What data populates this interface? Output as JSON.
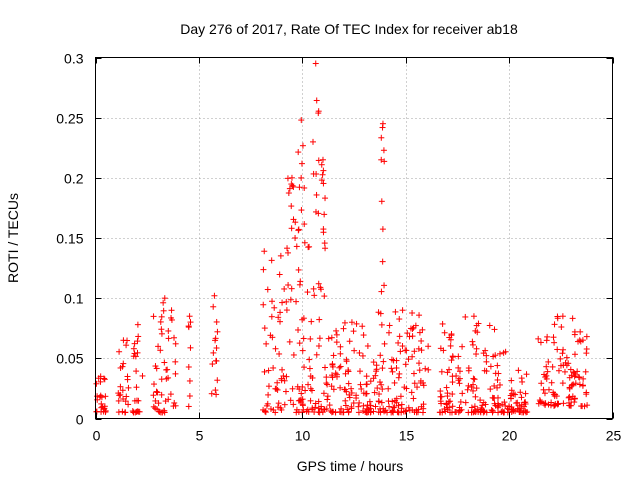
{
  "chart_data": {
    "type": "scatter",
    "title": "Day 276 of 2017, Rate Of TEC Index for receiver ab18",
    "xlabel": "GPS time / hours",
    "ylabel": "ROTI / TECUs",
    "xlim": [
      0,
      25
    ],
    "ylim": [
      0,
      0.3
    ],
    "xticks": [
      0,
      5,
      10,
      15,
      20,
      25
    ],
    "yticks": [
      0,
      0.05,
      0.1,
      0.15,
      0.2,
      0.25,
      0.3
    ],
    "xtick_labels": [
      "0",
      "5",
      "10",
      "15",
      "20",
      "25"
    ],
    "ytick_labels": [
      "0",
      "0.05",
      "0.1",
      "0.15",
      "0.2",
      "0.25",
      "0.3"
    ],
    "grid": true,
    "legend": "none",
    "marker": "+",
    "color": "#ff0000",
    "clusters": [
      {
        "x": [
          0.0,
          0.5
        ],
        "y": [
          0.005,
          0.035
        ]
      },
      {
        "x": [
          1.1,
          1.6
        ],
        "y": [
          0.005,
          0.065
        ]
      },
      {
        "x": [
          1.8,
          2.3
        ],
        "y": [
          0.005,
          0.078
        ]
      },
      {
        "x": [
          2.8,
          3.9
        ],
        "y": [
          0.005,
          0.1
        ]
      },
      {
        "x": [
          4.5,
          4.6
        ],
        "y": [
          0.01,
          0.085
        ]
      },
      {
        "x": [
          5.6,
          5.9
        ],
        "y": [
          0.02,
          0.102
        ]
      },
      {
        "x": [
          8.1,
          11.2
        ],
        "y": [
          0.005,
          0.15
        ]
      },
      {
        "x": [
          11.2,
          13.6
        ],
        "y": [
          0.005,
          0.08
        ]
      },
      {
        "x": [
          13.6,
          16.1
        ],
        "y": [
          0.005,
          0.09
        ]
      },
      {
        "x": [
          16.6,
          20.0
        ],
        "y": [
          0.005,
          0.085
        ]
      },
      {
        "x": [
          20.0,
          20.9
        ],
        "y": [
          0.005,
          0.04
        ]
      },
      {
        "x": [
          21.4,
          23.8
        ],
        "y": [
          0.01,
          0.085
        ]
      }
    ],
    "peaks": [
      {
        "x": [
          9.3,
          9.7
        ],
        "y": [
          0.15,
          0.2
        ]
      },
      {
        "x": [
          9.8,
          10.1
        ],
        "y": [
          0.15,
          0.248
        ]
      },
      {
        "x": [
          10.5,
          10.8
        ],
        "y": [
          0.15,
          0.295
        ]
      },
      {
        "x": [
          10.9,
          11.1
        ],
        "y": [
          0.13,
          0.215
        ]
      },
      {
        "x": [
          13.8,
          14.0
        ],
        "y": [
          0.1,
          0.245
        ]
      }
    ]
  }
}
